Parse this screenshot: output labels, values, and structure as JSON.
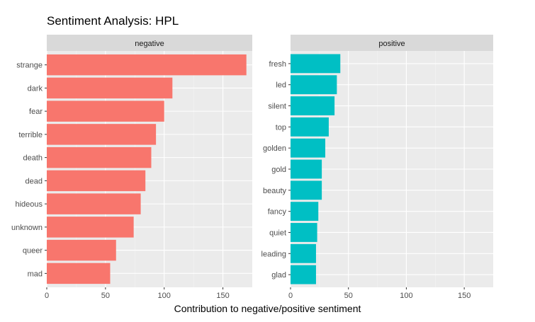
{
  "chart_data": {
    "title": "Sentiment Analysis: HPL",
    "xlabel": "Contribution to negative/positive sentiment",
    "ylabel": "",
    "type": "bar",
    "orientation": "horizontal",
    "xlim": [
      0,
      175
    ],
    "x_ticks": [
      0,
      50,
      100,
      150
    ],
    "grid": true,
    "legend": "none",
    "panels": [
      {
        "facet_label": "negative",
        "color": "#F8766D",
        "categories": [
          "strange",
          "dark",
          "fear",
          "terrible",
          "death",
          "dead",
          "hideous",
          "unknown",
          "queer",
          "mad"
        ],
        "values": [
          170,
          107,
          100,
          93,
          89,
          84,
          80,
          74,
          59,
          54
        ]
      },
      {
        "facet_label": "positive",
        "color": "#00BFC4",
        "categories": [
          "fresh",
          "led",
          "silent",
          "top",
          "golden",
          "gold",
          "beauty",
          "fancy",
          "quiet",
          "leading",
          "glad"
        ],
        "values": [
          43,
          40,
          38,
          33,
          30,
          27,
          27,
          24,
          23,
          22,
          22
        ]
      }
    ]
  }
}
